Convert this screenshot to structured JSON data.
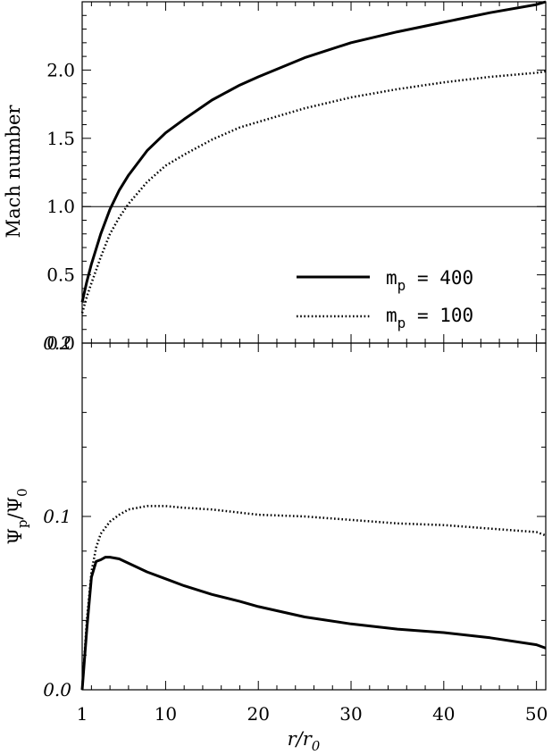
{
  "chart_data": [
    {
      "type": "line",
      "ylabel": "Mach number",
      "xlim": [
        1,
        51
      ],
      "ylim": [
        0,
        2.5
      ],
      "yticks": [
        "0.0",
        "0.5",
        "1.0",
        "1.5",
        "2.0"
      ],
      "reference_line": 1.0,
      "legend": {
        "position": "bottom-right",
        "entries": [
          {
            "base": "m",
            "sub": "p",
            "rest": " = 400",
            "style": "solid"
          },
          {
            "base": "m",
            "sub": "p",
            "rest": " = 100",
            "style": "dotted"
          }
        ]
      },
      "series": [
        {
          "style": "solid",
          "x": [
            1,
            1.5,
            2,
            3,
            4,
            5,
            6,
            8,
            10,
            12,
            15,
            18,
            20,
            25,
            30,
            35,
            40,
            45,
            50,
            51
          ],
          "values": [
            0.3,
            0.45,
            0.58,
            0.8,
            0.98,
            1.12,
            1.23,
            1.41,
            1.54,
            1.64,
            1.78,
            1.89,
            1.95,
            2.09,
            2.2,
            2.28,
            2.35,
            2.42,
            2.48,
            2.5
          ]
        },
        {
          "style": "dotted",
          "x": [
            1,
            1.5,
            2,
            3,
            4,
            5,
            6,
            8,
            10,
            12,
            15,
            18,
            20,
            25,
            30,
            35,
            40,
            45,
            50,
            51
          ],
          "values": [
            0.22,
            0.34,
            0.44,
            0.63,
            0.8,
            0.92,
            1.02,
            1.18,
            1.3,
            1.38,
            1.49,
            1.58,
            1.62,
            1.72,
            1.8,
            1.86,
            1.91,
            1.95,
            1.98,
            1.99
          ]
        }
      ]
    },
    {
      "type": "line",
      "xlabel": "r/r",
      "xlabel_sub": "0",
      "ylabel": "Ψ",
      "ylabel_sub1": "p",
      "ylabel_mid": "/Ψ",
      "ylabel_sub2": "0",
      "xlim": [
        1,
        51
      ],
      "ylim": [
        0,
        0.2
      ],
      "xticks": [
        "1",
        "10",
        "20",
        "30",
        "40",
        "50"
      ],
      "yticks": [
        "0.0",
        "0.1",
        "0.2"
      ],
      "series": [
        {
          "style": "solid",
          "x": [
            1,
            1.5,
            2,
            2.5,
            3,
            3.5,
            4,
            5,
            6,
            8,
            10,
            12,
            15,
            18,
            20,
            25,
            30,
            35,
            40,
            45,
            50,
            51
          ],
          "values": [
            0,
            0.035,
            0.065,
            0.074,
            0.075,
            0.0765,
            0.0765,
            0.0755,
            0.073,
            0.068,
            0.064,
            0.06,
            0.055,
            0.051,
            0.048,
            0.042,
            0.038,
            0.035,
            0.033,
            0.03,
            0.026,
            0.024
          ]
        },
        {
          "style": "dotted",
          "x": [
            1,
            1.5,
            2,
            2.5,
            3,
            4,
            5,
            6,
            7,
            8,
            10,
            12,
            15,
            20,
            25,
            30,
            35,
            40,
            45,
            50,
            51
          ],
          "values": [
            0,
            0.04,
            0.068,
            0.082,
            0.09,
            0.097,
            0.101,
            0.104,
            0.105,
            0.106,
            0.106,
            0.105,
            0.104,
            0.101,
            0.1,
            0.098,
            0.096,
            0.095,
            0.093,
            0.091,
            0.089
          ]
        }
      ]
    }
  ]
}
